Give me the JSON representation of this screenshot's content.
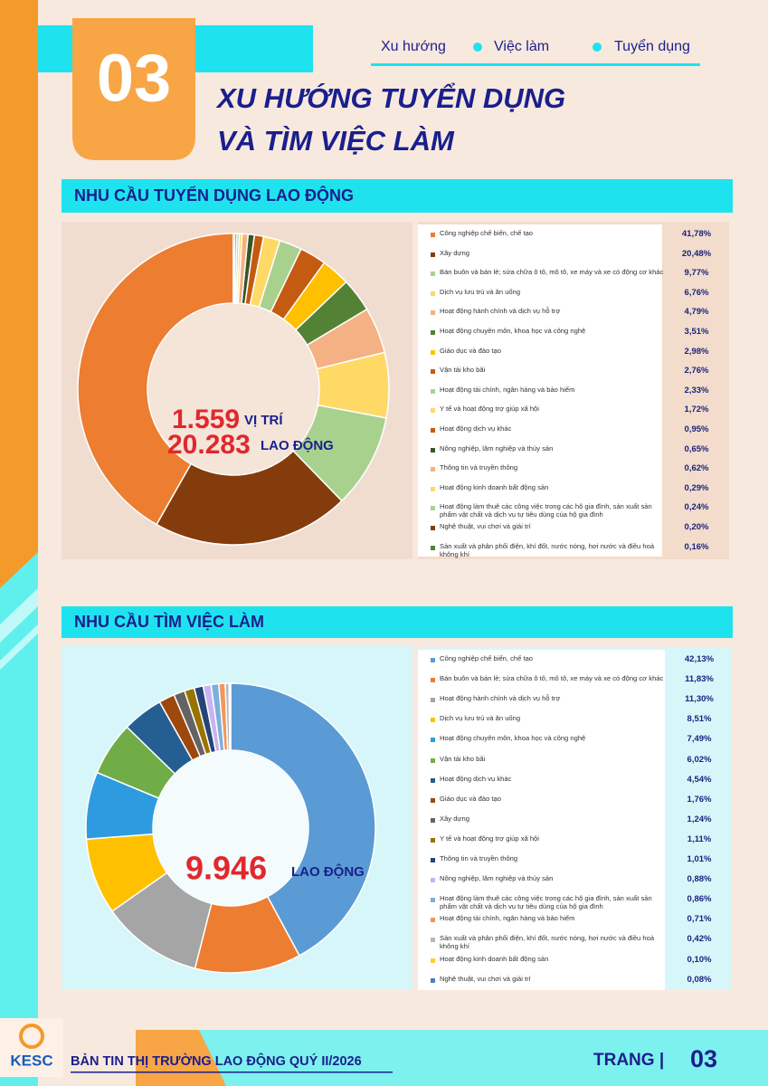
{
  "header": {
    "number": "03",
    "title_line1": "XU HƯỚNG TUYỂN DỤNG",
    "title_line2": "VÀ TÌM VIỆC LÀM",
    "nav": [
      "Xu hướng",
      "Việc làm",
      "Tuyển dụng"
    ]
  },
  "chart_data": [
    {
      "type": "donut",
      "title": "NHU CẦU TUYỂN DỤNG LAO ĐỘNG",
      "center": {
        "figure1": "1.559",
        "unit1": "VỊ TRÍ",
        "figure2": "20.283",
        "unit2": "LAO ĐỘNG"
      },
      "categories": [
        "Công nghiệp chế biến, chế tạo",
        "Xây dựng",
        "Bán buôn và bán lẻ; sửa chữa ô tô, mô tô, xe máy và xe có động cơ khác",
        "Dịch vụ lưu trú và ăn uống",
        "Hoạt động hành chính và dịch vụ hỗ trợ",
        "Hoạt động chuyên môn, khoa học và công nghệ",
        "Giáo dục và đào tạo",
        "Vận tải kho bãi",
        "Hoạt động tài chính, ngân hàng và bảo hiểm",
        "Y tế và hoạt động trợ giúp xã hội",
        "Hoạt động dịch vụ khác",
        "Nông nghiệp, lâm nghiệp và thủy sản",
        "Thông tin và truyền thông",
        "Hoạt động kinh doanh bất động sản",
        "Hoạt động làm thuê các công việc trong các hộ gia đình, sản xuất sản phẩm vật chất và dịch vụ tự tiêu dùng của hộ gia đình",
        "Nghệ thuật, vui chơi và giải trí",
        "Sản xuất và phân phối điện, khí đốt, nước nóng, hơi nước và điều hoà không khí"
      ],
      "values": [
        41.78,
        20.48,
        9.77,
        6.76,
        4.79,
        3.51,
        2.98,
        2.76,
        2.33,
        1.72,
        0.95,
        0.65,
        0.62,
        0.29,
        0.24,
        0.2,
        0.16
      ],
      "value_labels": [
        "41,78%",
        "20,48%",
        "9,77%",
        "6,76%",
        "4,79%",
        "3,51%",
        "2,98%",
        "2,76%",
        "2,33%",
        "1,72%",
        "0,95%",
        "0,65%",
        "0,62%",
        "0,29%",
        "0,24%",
        "0,20%",
        "0,16%"
      ],
      "colors": [
        "#ed7d31",
        "#843c0c",
        "#a9d18e",
        "#ffd966",
        "#f4b183",
        "#548235",
        "#ffc000",
        "#c55a11",
        "#a9d18e",
        "#ffd966",
        "#c55a11",
        "#385723",
        "#f4b183",
        "#ffd966",
        "#a9d18e",
        "#843c0c",
        "#548235"
      ]
    },
    {
      "type": "donut",
      "title": "NHU CẦU TÌM VIỆC LÀM",
      "center": {
        "figure1": "9.946",
        "unit1": "LAO ĐỘNG"
      },
      "categories": [
        "Công nghiệp chế biến, chế tạo",
        "Bán buôn và bán lẻ; sửa chữa ô tô, mô tô, xe máy và xe có động cơ khác",
        "Hoạt động hành chính và dịch vụ hỗ trợ",
        "Dịch vụ lưu trú và ăn uống",
        "Hoạt động chuyên môn, khoa học và công nghệ",
        "Vận tải kho bãi",
        "Hoạt động dịch vụ khác",
        "Giáo dục và đào tạo",
        "Xây dựng",
        "Y tế và hoạt động trợ giúp xã hội",
        "Thông tin và truyền thông",
        "Nông nghiệp, lâm nghiệp và thủy sản",
        "Hoạt động làm thuê các công việc trong các hộ gia đình, sản xuất sản phẩm vật chất và dịch vụ tự tiêu dùng của hộ gia đình",
        "Hoạt động tài chính, ngân hàng và bảo hiểm",
        "Sản xuất và phân phối điện, khí đốt, nước nóng, hơi nước và điều hoà không khí",
        "Hoạt động kinh doanh bất động sản",
        "Nghệ thuật, vui chơi và giải trí"
      ],
      "values": [
        42.13,
        11.83,
        11.3,
        8.51,
        7.49,
        6.02,
        4.54,
        1.76,
        1.24,
        1.11,
        1.01,
        0.88,
        0.86,
        0.71,
        0.42,
        0.1,
        0.08
      ],
      "value_labels": [
        "42,13%",
        "11,83%",
        "11,30%",
        "8,51%",
        "7,49%",
        "6,02%",
        "4,54%",
        "1,76%",
        "1,24%",
        "1,11%",
        "1,01%",
        "0,88%",
        "0,86%",
        "0,71%",
        "0,42%",
        "0,10%",
        "0,08%"
      ],
      "colors": [
        "#5b9bd5",
        "#ed7d31",
        "#a5a5a5",
        "#ffc000",
        "#2e9be0",
        "#70ad47",
        "#255e91",
        "#9e480e",
        "#636363",
        "#997300",
        "#264478",
        "#c9b3f0",
        "#7cafdd",
        "#f1975a",
        "#b7b7b7",
        "#ffcd33",
        "#4a7ebb"
      ]
    }
  ],
  "footer": {
    "logo": "KESC",
    "title": "BẢN TIN THỊ TRƯỜNG LAO ĐỘNG QUÝ II/2026",
    "page_label": "TRANG |",
    "page_number": "03"
  }
}
